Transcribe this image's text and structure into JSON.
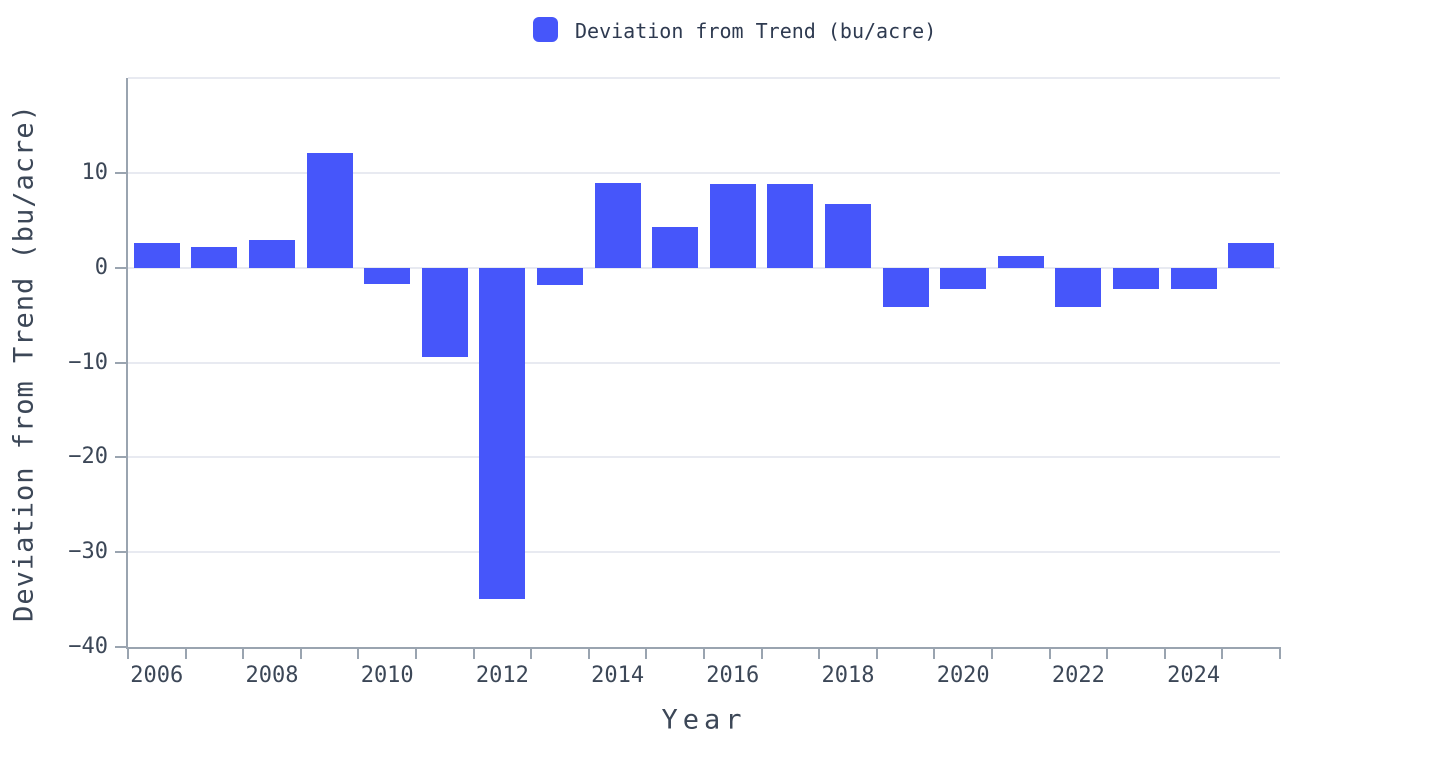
{
  "legend": {
    "label": "Deviation from Trend (bu/acre)"
  },
  "colors": {
    "bar": "#4656fa",
    "grid": "#e8eaf1",
    "axis": "#9aa4b0",
    "tick_text": "#3c4757",
    "title_text": "#3c4757",
    "legend_text": "#2e3a50",
    "background": "#ffffff"
  },
  "chart_data": {
    "type": "bar",
    "title": "",
    "xlabel": "Year",
    "ylabel": "Deviation from Trend (bu/acre)",
    "legend_entries": [
      "Deviation from Trend (bu/acre)"
    ],
    "legend_position": "top-center",
    "grid": true,
    "categories": [
      "2006",
      "2007",
      "2008",
      "2009",
      "2010",
      "2011",
      "2012",
      "2013",
      "2014",
      "2015",
      "2016",
      "2017",
      "2018",
      "2019",
      "2020",
      "2021",
      "2022",
      "2023",
      "2024",
      "2025"
    ],
    "values": [
      2.6,
      2.2,
      2.9,
      12.1,
      -1.7,
      -9.4,
      -34.9,
      -1.8,
      8.9,
      4.3,
      8.8,
      8.8,
      6.7,
      -4.1,
      -2.3,
      1.2,
      -4.2,
      -2.3,
      -2.3,
      2.6
    ],
    "ylim": [
      -40,
      20
    ],
    "gridline_values": [
      20,
      10,
      0,
      -10,
      -20,
      -30
    ],
    "ytick_values": [
      10,
      0,
      -10,
      -20,
      -30,
      -40
    ],
    "ytick_labels": [
      "10",
      "0",
      "−10",
      "−20",
      "−30",
      "−40"
    ],
    "xtick_labels": [
      "2006",
      "2008",
      "2010",
      "2012",
      "2014",
      "2016",
      "2018",
      "2020",
      "2022",
      "2024"
    ],
    "bar_width_fraction": 0.8
  }
}
